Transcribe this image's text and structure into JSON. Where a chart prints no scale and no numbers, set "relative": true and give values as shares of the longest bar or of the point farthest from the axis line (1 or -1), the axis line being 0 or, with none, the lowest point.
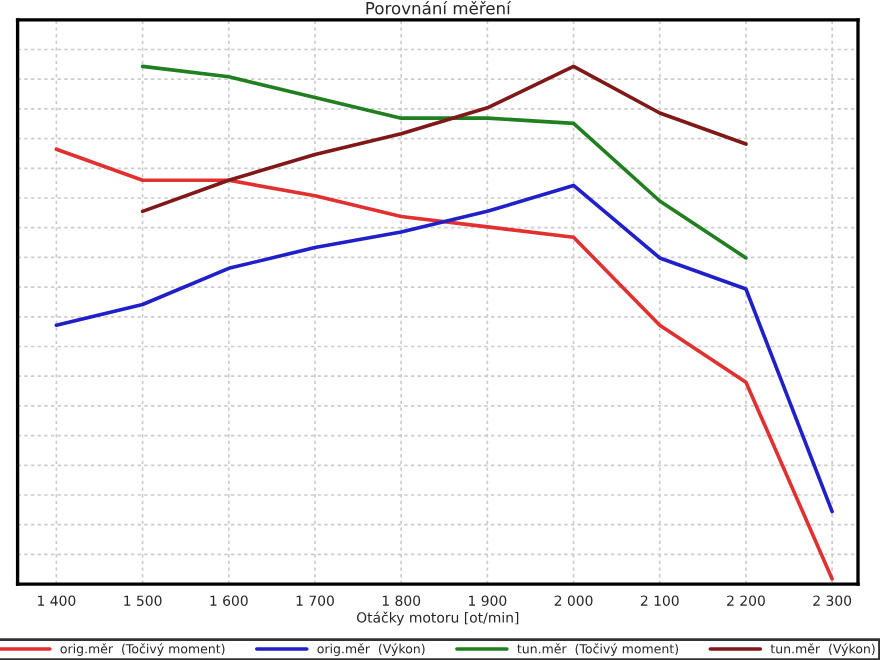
{
  "chart_data": {
    "type": "line",
    "title": "Porovnání měření",
    "xlabel": "Otáčky motoru [ot/min]",
    "x": [
      1400,
      1500,
      1600,
      1700,
      1800,
      1900,
      2000,
      2100,
      2200,
      2300
    ],
    "xlim": [
      1355,
      2330
    ],
    "xticks": [
      {
        "value": 1400,
        "label": "1 400"
      },
      {
        "value": 1500,
        "label": "1 500"
      },
      {
        "value": 1600,
        "label": "1 600"
      },
      {
        "value": 1700,
        "label": "1 700"
      },
      {
        "value": 1800,
        "label": "1 800"
      },
      {
        "value": 1900,
        "label": "1 900"
      },
      {
        "value": 2000,
        "label": "2 000"
      },
      {
        "value": 2100,
        "label": "2 100"
      },
      {
        "value": 2200,
        "label": "2 200"
      },
      {
        "value": 2300,
        "label": "2 300"
      }
    ],
    "relative": true,
    "grid": true,
    "legend": "bottom",
    "marker": "none",
    "line_style": "solid",
    "series": [
      {
        "name": "orig.měr  (Točivý moment)",
        "color": "#e03030",
        "values": [
          0.84,
          0.78,
          0.78,
          0.75,
          0.71,
          0.69,
          0.67,
          0.5,
          0.39,
          0.01
        ]
      },
      {
        "name": "orig.měr  (Výkon)",
        "color": "#2020c8",
        "values": [
          0.5,
          0.54,
          0.61,
          0.65,
          0.68,
          0.72,
          0.77,
          0.63,
          0.57,
          0.14
        ]
      },
      {
        "name": "tun.měr  (Točivý moment)",
        "color": "#208020",
        "values": [
          null,
          1.0,
          0.98,
          0.94,
          0.9,
          0.9,
          0.89,
          0.74,
          0.63,
          null
        ]
      },
      {
        "name": "tun.měr  (Výkon)",
        "color": "#801818",
        "values": [
          null,
          0.72,
          0.78,
          0.83,
          0.87,
          0.92,
          1.0,
          0.91,
          0.85,
          null
        ]
      }
    ]
  }
}
